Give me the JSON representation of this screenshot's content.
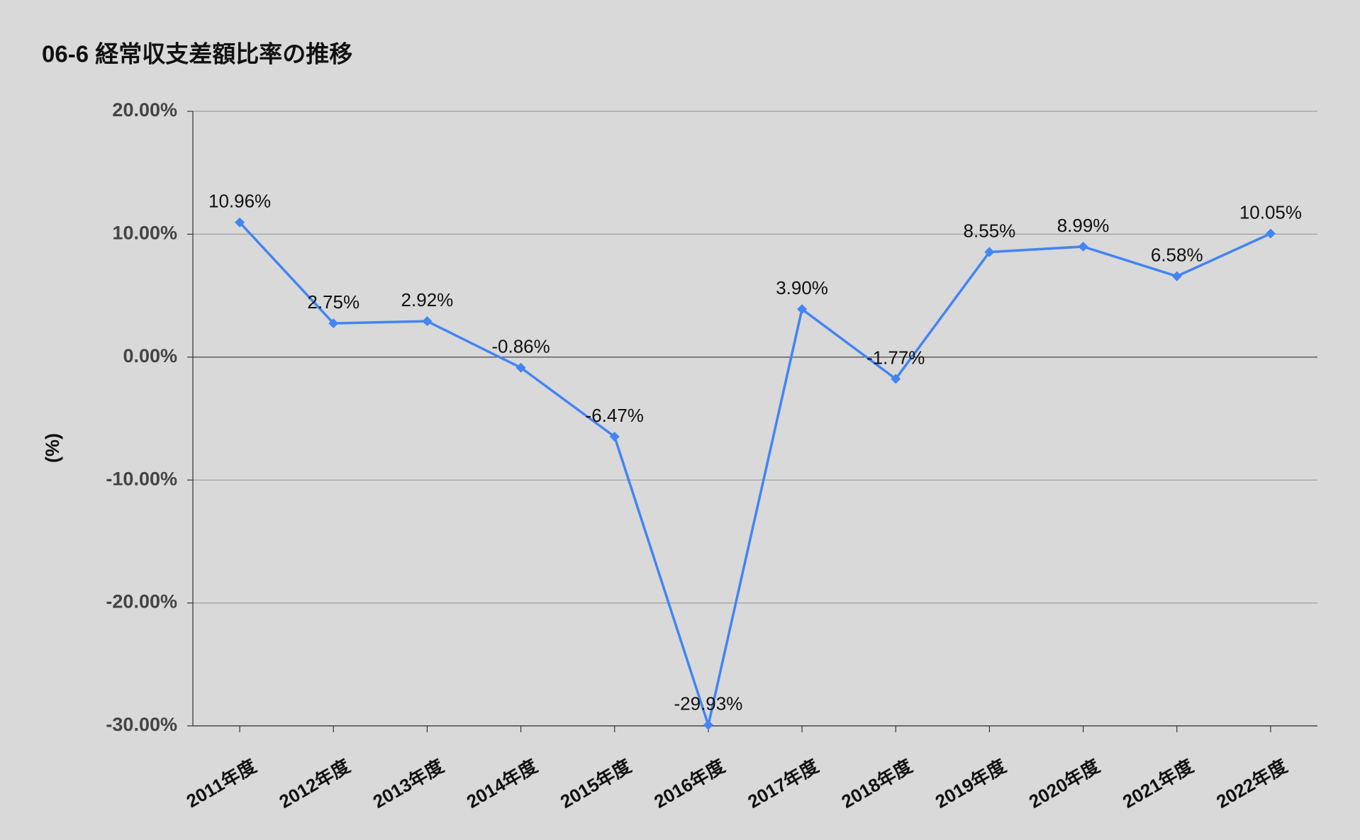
{
  "chart_data": {
    "type": "line",
    "title": "06-6 経常収支差額比率の推移",
    "y_label": "(%)",
    "categories": [
      "2011年度",
      "2012年度",
      "2013年度",
      "2014年度",
      "2015年度",
      "2016年度",
      "2017年度",
      "2018年度",
      "2019年度",
      "2020年度",
      "2021年度",
      "2022年度"
    ],
    "series": [
      {
        "name": "経常収支差額比率",
        "color": "#4285f4",
        "values": [
          10.96,
          2.75,
          2.92,
          -0.86,
          -6.47,
          -29.93,
          3.9,
          -1.77,
          8.55,
          8.99,
          6.58,
          10.05
        ],
        "value_labels": [
          "10.96%",
          "2.75%",
          "2.92%",
          "-0.86%",
          "-6.47%",
          "-29.93%",
          "3.90%",
          "-1.77%",
          "8.55%",
          "8.99%",
          "6.58%",
          "10.05%"
        ]
      }
    ],
    "ylim": [
      -30,
      20
    ],
    "yticks": [
      {
        "value": -30,
        "label": "-30.00%"
      },
      {
        "value": -20,
        "label": "-20.00%"
      },
      {
        "value": -10,
        "label": "-10.00%"
      },
      {
        "value": 0,
        "label": "0.00%"
      },
      {
        "value": 10,
        "label": "10.00%"
      },
      {
        "value": 20,
        "label": "20.00%"
      }
    ],
    "grid": true
  }
}
